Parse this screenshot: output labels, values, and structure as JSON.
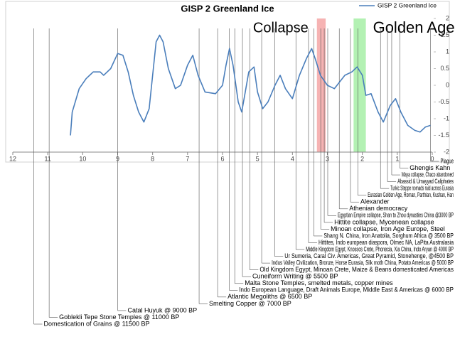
{
  "chart_data": {
    "type": "line",
    "title": "GISP 2 Greenland Ice",
    "series": [
      {
        "name": "GISP 2 Greenland Ice",
        "color": "#4a7ebb",
        "x": [
          10.35,
          10.3,
          10.1,
          9.9,
          9.7,
          9.5,
          9.4,
          9.2,
          9.0,
          8.85,
          8.7,
          8.55,
          8.4,
          8.25,
          8.1,
          8.0,
          7.9,
          7.8,
          7.7,
          7.55,
          7.35,
          7.2,
          7.0,
          6.85,
          6.7,
          6.5,
          6.2,
          6.0,
          5.9,
          5.8,
          5.7,
          5.55,
          5.45,
          5.35,
          5.25,
          5.1,
          5.0,
          4.85,
          4.7,
          4.5,
          4.35,
          4.2,
          4.0,
          3.8,
          3.6,
          3.45,
          3.35,
          3.2,
          3.0,
          2.8,
          2.5,
          2.3,
          2.15,
          2.0,
          1.9,
          1.75,
          1.55,
          1.4,
          1.2,
          1.05,
          0.9,
          0.7,
          0.5,
          0.35,
          0.2,
          0.05
        ],
        "values": [
          -1.5,
          -0.8,
          -0.1,
          0.2,
          0.4,
          0.4,
          0.3,
          0.5,
          0.95,
          0.9,
          0.4,
          -0.3,
          -0.8,
          -1.1,
          -0.7,
          0.3,
          1.3,
          1.5,
          1.3,
          0.5,
          -0.1,
          0.0,
          0.6,
          0.9,
          0.3,
          -0.2,
          -0.25,
          0.0,
          0.6,
          1.1,
          0.6,
          -0.5,
          -0.8,
          -0.2,
          0.4,
          0.55,
          -0.2,
          -0.7,
          -0.5,
          0.0,
          0.3,
          -0.1,
          -0.4,
          0.3,
          0.8,
          1.1,
          0.8,
          0.3,
          0.0,
          -0.1,
          0.3,
          0.4,
          0.55,
          0.3,
          -0.3,
          -0.25,
          -0.8,
          -1.1,
          -0.6,
          -0.4,
          -0.8,
          -1.2,
          -1.35,
          -1.4,
          -1.25,
          -1.2
        ]
      }
    ],
    "xlim": [
      12,
      0
    ],
    "xticks": [
      12,
      11,
      10,
      9,
      8,
      7,
      6,
      5,
      4,
      3,
      2,
      1,
      0
    ],
    "ylim": [
      -2,
      2
    ],
    "yticks": [
      2,
      1.5,
      1,
      0.5,
      0,
      -0.5,
      -1,
      -1.5,
      -2
    ],
    "legend": "top-right",
    "bands": [
      {
        "label": "Collapse",
        "from": 3.3,
        "to": 3.05,
        "color": "#f4a6a6",
        "label_color": "#f4a6a6"
      },
      {
        "label": "Golden Age",
        "from": 2.25,
        "to": 1.9,
        "color": "#a6eea6",
        "label_color": "#2ecc71"
      }
    ],
    "annotations": [
      {
        "text": "Plague",
        "x": 0.05
      },
      {
        "text": "Ghengis Kahn",
        "x": 0.93
      },
      {
        "text": "Maya collapse, Chaco abandoned",
        "x": 1.16
      },
      {
        "text": "Abassid & Umayyad Caliphates",
        "x": 1.28
      },
      {
        "text": "Turkic Steppe nomads raid across Eurasia",
        "x": 1.48
      },
      {
        "text": "Eurasian Golden Age, Roman, Parthian, Kushan, Han",
        "x": 2.13
      },
      {
        "text": "Alexander",
        "x": 2.34
      },
      {
        "text": "Athenian democracy",
        "x": 2.66
      },
      {
        "text": "Egyptian Empire collapse, Shan to Zhou dynasties China @3000 BP",
        "x": 2.99
      },
      {
        "text": "Hittite collapse, Mycenean collapse",
        "x": 3.09
      },
      {
        "text": "Minoan collapse, Iron Age Europe, Steel",
        "x": 3.19
      },
      {
        "text": "Shang N. China, Iron Anatolia, Sorghum Africa @ 3500 BP",
        "x": 3.39
      },
      {
        "text": "Hittites, Indo european diaspora, Olmec NA, LaPita Australasia",
        "x": 3.54
      },
      {
        "text": "Middle Kingdom Egypt, Knossos Crete, Phonecia, Xia China, Indo Aryan @ 4000 BP",
        "x": 3.9
      },
      {
        "text": "Ur Sumeria, Caral Civ. Americas, Great Pyramid, Stonehenge, @4500 BP",
        "x": 4.51
      },
      {
        "text": "Indus Valley Civilization, Bronze, Horse Eurasia, Silk moth China, Potato Americas @ 5000 BP",
        "x": 4.88
      },
      {
        "text": "Old Kingdom Egypt, Minoan Crete, Maize  & Beans domesticated Americas",
        "x": 5.22
      },
      {
        "text": "Cuneiform Writing @ 5500 BP",
        "x": 5.43
      },
      {
        "text": "Malta Stone Temples, smelted metals, copper mines",
        "x": 5.65
      },
      {
        "text": "Indo European Language, Draft Animals Europe, Middle East & Americas @ 6000 BP",
        "x": 5.81
      },
      {
        "text": "Atlantic Megoliths @ 6500 BP",
        "x": 6.14
      },
      {
        "text": "Smelting Copper @ 7000 BP",
        "x": 6.67
      },
      {
        "text": "Catal Huyuk @ 9000 BP",
        "x": 9.0
      },
      {
        "text": "Goblekli Tepe Stone Temples @ 11000 BP",
        "x": 10.96
      },
      {
        "text": "Domestication of Grains @ 11500 BP",
        "x": 11.4
      }
    ]
  }
}
